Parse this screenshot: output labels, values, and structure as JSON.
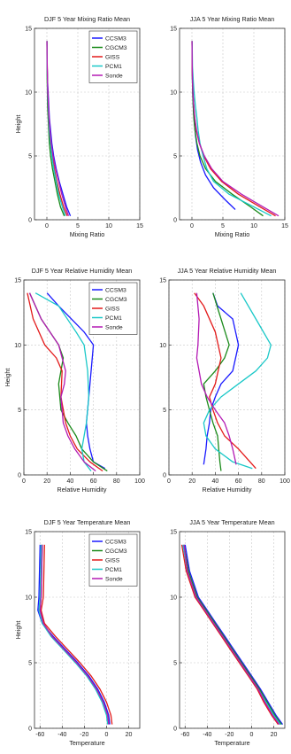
{
  "colors": {
    "CCSM3": "#1a1aff",
    "CGCM3": "#1a8a1a",
    "GISS": "#e31a1a",
    "PCM1": "#1ac8c8",
    "Sonde": "#b41ab4",
    "grid": "#c8c8c8",
    "axis": "#333333"
  },
  "chart_data": [
    {
      "type": "line",
      "title": "DJF 5 Year Mixing Ratio Mean",
      "xlabel": "Mixing Ratio",
      "ylabel": "Height",
      "xlim": [
        -2,
        15
      ],
      "ylim": [
        0,
        15
      ],
      "xticks": [
        0,
        5,
        10,
        15
      ],
      "yticks": [
        0,
        5,
        10,
        15
      ],
      "grid": true,
      "legend": "top-right",
      "series": [
        {
          "name": "CCSM3",
          "x": [
            3.8,
            3.2,
            2.6,
            2.0,
            1.5,
            1.1,
            0.8,
            0.6,
            0.4,
            0.3,
            0.2,
            0.1,
            0.05,
            0.03,
            0.02
          ],
          "y": [
            0.3,
            1,
            2,
            3,
            4,
            5,
            6,
            7,
            8,
            9,
            10,
            11,
            12,
            13,
            14
          ]
        },
        {
          "name": "CGCM3",
          "x": [
            2.8,
            2.2,
            1.7,
            1.3,
            0.9,
            0.6,
            0.4,
            0.3,
            0.2,
            0.1,
            0.08,
            0.05,
            0.03,
            0.02,
            0.01
          ],
          "y": [
            0.3,
            1,
            2,
            3,
            4,
            5,
            6,
            7,
            8,
            9,
            10,
            11,
            12,
            13,
            14
          ]
        },
        {
          "name": "GISS",
          "x": [
            3.3,
            2.7,
            2.1,
            1.6,
            1.2,
            0.9,
            0.6,
            0.4,
            0.3,
            0.2,
            0.15,
            0.1,
            0.06,
            0.03,
            0.02
          ],
          "y": [
            0.3,
            1,
            2,
            3,
            4,
            5,
            6,
            7,
            8,
            9,
            10,
            11,
            12,
            13,
            14
          ]
        },
        {
          "name": "PCM1",
          "x": [
            3.0,
            2.5,
            1.9,
            1.5,
            1.1,
            0.8,
            0.6,
            0.4,
            0.3,
            0.2,
            0.12,
            0.08,
            0.05,
            0.03,
            0.02
          ],
          "y": [
            0.3,
            1,
            2,
            3,
            4,
            5,
            6,
            7,
            8,
            9,
            10,
            11,
            12,
            13,
            14
          ]
        },
        {
          "name": "Sonde",
          "x": [
            3.5,
            3.0,
            2.4,
            1.9,
            1.4,
            1.0,
            0.7,
            0.5,
            0.35,
            0.25,
            0.15,
            0.1,
            0.06,
            0.03,
            0.02
          ],
          "y": [
            0.3,
            1,
            2,
            3,
            4,
            5,
            6,
            7,
            8,
            9,
            10,
            11,
            12,
            13,
            14
          ]
        }
      ]
    },
    {
      "type": "line",
      "title": "JJA 5 Year Mixing Ratio Mean",
      "xlabel": "Mixing Ratio",
      "ylabel": "",
      "xlim": [
        -2,
        15
      ],
      "ylim": [
        0,
        15
      ],
      "xticks": [
        0,
        5,
        10,
        15
      ],
      "yticks": [
        0,
        5,
        10,
        15
      ],
      "grid": true,
      "series": [
        {
          "name": "CCSM3",
          "x": [
            7.0,
            5.5,
            3.5,
            2.2,
            1.4,
            0.9,
            0.6,
            0.4,
            0.25,
            0.15,
            0.1,
            0.06,
            0.04,
            0.02
          ],
          "y": [
            0.8,
            1.5,
            2.5,
            3.5,
            4.5,
            5.5,
            6.5,
            7.5,
            8.5,
            9.5,
            10.5,
            11.5,
            12.5,
            14
          ]
        },
        {
          "name": "CGCM3",
          "x": [
            11.5,
            9.5,
            6.5,
            3.8,
            2.2,
            1.3,
            0.8,
            0.5,
            0.3,
            0.2,
            0.12,
            0.07,
            0.04,
            0.02
          ],
          "y": [
            0.3,
            1,
            2,
            3,
            4,
            5,
            6,
            7,
            8,
            9,
            10,
            11,
            12,
            14
          ]
        },
        {
          "name": "GISS",
          "x": [
            13.5,
            11.0,
            7.5,
            4.8,
            3.0,
            1.9,
            1.2,
            0.7,
            0.45,
            0.28,
            0.15,
            0.08,
            0.04,
            0.02
          ],
          "y": [
            0.3,
            1,
            2,
            3,
            4,
            5,
            6,
            7,
            8,
            9,
            10,
            11,
            12,
            14
          ]
        },
        {
          "name": "PCM1",
          "x": [
            12.8,
            10.0,
            6.0,
            3.5,
            2.4,
            1.8,
            1.3,
            1.0,
            0.8,
            0.55,
            0.35,
            0.2,
            0.08,
            0.03
          ],
          "y": [
            0.3,
            1,
            2,
            3,
            4,
            5,
            6,
            7,
            8,
            9,
            10,
            11,
            12,
            14
          ]
        },
        {
          "name": "Sonde",
          "x": [
            14.0,
            11.5,
            8.0,
            5.0,
            3.2,
            2.0,
            1.2,
            0.75,
            0.45,
            0.28,
            0.15,
            0.08,
            0.04,
            0.02
          ],
          "y": [
            0.3,
            1,
            2,
            3,
            4,
            5,
            6,
            7,
            8,
            9,
            10,
            11,
            12,
            14
          ]
        }
      ]
    },
    {
      "type": "line",
      "title": "DJF 5 Year Relative Humidity Mean",
      "xlabel": "Relative Humidity",
      "ylabel": "Height",
      "xlim": [
        0,
        100
      ],
      "ylim": [
        0,
        15
      ],
      "xticks": [
        0,
        20,
        40,
        60,
        80,
        100
      ],
      "yticks": [
        0,
        5,
        10,
        15
      ],
      "grid": true,
      "legend": "top-right",
      "series": [
        {
          "name": "CCSM3",
          "x": [
            70,
            60,
            57,
            55,
            54,
            56,
            58,
            60,
            52,
            30,
            20
          ],
          "y": [
            0.5,
            1,
            2,
            3,
            4,
            6,
            8,
            10,
            11,
            13,
            14
          ]
        },
        {
          "name": "CGCM3",
          "x": [
            72,
            60,
            50,
            45,
            38,
            32,
            30,
            34,
            30,
            15,
            5
          ],
          "y": [
            0.3,
            1,
            2,
            3,
            4,
            5,
            7,
            9,
            10,
            12,
            14
          ]
        },
        {
          "name": "GISS",
          "x": [
            68,
            57,
            46,
            40,
            36,
            32,
            33,
            28,
            18,
            8,
            3
          ],
          "y": [
            0.3,
            1,
            2,
            3,
            4,
            6,
            8,
            9,
            10,
            12,
            14
          ]
        },
        {
          "name": "PCM1",
          "x": [
            58,
            52,
            50,
            52,
            54,
            56,
            55,
            52,
            45,
            30,
            10
          ],
          "y": [
            0.3,
            1,
            2,
            3,
            4,
            6,
            8,
            10,
            11,
            13,
            14
          ]
        },
        {
          "name": "Sonde",
          "x": [
            62,
            52,
            44,
            38,
            34,
            32,
            35,
            36,
            30,
            15,
            5
          ],
          "y": [
            0.3,
            1,
            2,
            3,
            4,
            6,
            7,
            8,
            10,
            12,
            14
          ]
        }
      ]
    },
    {
      "type": "line",
      "title": "JJA 5 Year Relative Humidity Mean",
      "xlabel": "Relative Humidity",
      "ylabel": "",
      "xlim": [
        0,
        100
      ],
      "ylim": [
        0,
        15
      ],
      "xticks": [
        0,
        20,
        40,
        60,
        80,
        100
      ],
      "yticks": [
        0,
        5,
        10,
        15
      ],
      "grid": true,
      "series": [
        {
          "name": "CCSM3",
          "x": [
            30,
            32,
            33,
            35,
            36,
            40,
            45,
            55,
            60,
            55,
            42,
            38
          ],
          "y": [
            0.8,
            2,
            3,
            4,
            5,
            6,
            7,
            8,
            10,
            12,
            13,
            14
          ]
        },
        {
          "name": "CGCM3",
          "x": [
            45,
            44,
            42,
            38,
            35,
            32,
            30,
            40,
            48,
            52,
            45,
            38
          ],
          "y": [
            0.3,
            1,
            3,
            4,
            5,
            6,
            7,
            8,
            9,
            10,
            12,
            14
          ]
        },
        {
          "name": "GISS",
          "x": [
            75,
            70,
            60,
            48,
            42,
            38,
            35,
            40,
            45,
            40,
            30,
            22
          ],
          "y": [
            0.5,
            1,
            2,
            3,
            4,
            5,
            6,
            7,
            9,
            11,
            13,
            14
          ]
        },
        {
          "name": "PCM1",
          "x": [
            72,
            55,
            40,
            32,
            30,
            35,
            45,
            60,
            75,
            85,
            88,
            75,
            62
          ],
          "y": [
            0.5,
            1,
            2,
            3,
            4,
            5,
            6,
            7,
            8,
            9,
            10,
            12,
            14
          ]
        },
        {
          "name": "Sonde",
          "x": [
            58,
            55,
            52,
            48,
            40,
            33,
            28,
            26,
            24,
            25,
            26,
            24
          ],
          "y": [
            0.8,
            2,
            3,
            4,
            5,
            6,
            7,
            8,
            9,
            10,
            12,
            14
          ]
        }
      ]
    },
    {
      "type": "line",
      "title": "DJF 5 Year Temperature Mean",
      "xlabel": "Temperature",
      "ylabel": "Height",
      "xlim": [
        -65,
        30
      ],
      "ylim": [
        0,
        15
      ],
      "xticks": [
        -60,
        -40,
        -20,
        0,
        20
      ],
      "yticks": [
        0,
        5,
        10,
        15
      ],
      "grid": true,
      "legend": "top-right",
      "series": [
        {
          "name": "CCSM3",
          "x": [
            3,
            2,
            -2,
            -8,
            -16,
            -26,
            -37,
            -48,
            -58,
            -62,
            -61,
            -60
          ],
          "y": [
            0.3,
            1,
            2,
            3,
            4,
            5,
            6,
            7,
            8,
            9,
            10,
            14
          ]
        },
        {
          "name": "CGCM3",
          "x": [
            2,
            1,
            -3,
            -9,
            -17,
            -27,
            -38,
            -49,
            -57,
            -60,
            -59,
            -58
          ],
          "y": [
            0.3,
            1,
            2,
            3,
            4,
            5,
            6,
            7,
            8,
            9,
            10,
            14
          ]
        },
        {
          "name": "GISS",
          "x": [
            5,
            4,
            0,
            -6,
            -14,
            -24,
            -35,
            -46,
            -56,
            -59,
            -57,
            -56
          ],
          "y": [
            0.3,
            1,
            2,
            3,
            4,
            5,
            6,
            7,
            8,
            9,
            10,
            14
          ]
        },
        {
          "name": "PCM1",
          "x": [
            1,
            0,
            -4,
            -10,
            -18,
            -28,
            -39,
            -50,
            -58,
            -61,
            -60,
            -59
          ],
          "y": [
            0.3,
            1,
            2,
            3,
            4,
            5,
            6,
            7,
            8,
            9,
            10,
            14
          ]
        },
        {
          "name": "Sonde",
          "x": [
            2,
            1,
            -3,
            -9,
            -17,
            -27,
            -38,
            -49,
            -57,
            -60,
            -59,
            -58
          ],
          "y": [
            0.3,
            1,
            2,
            3,
            4,
            5,
            6,
            7,
            8,
            9,
            10,
            14
          ]
        }
      ]
    },
    {
      "type": "line",
      "title": "JJA 5 Year Temperature Mean",
      "xlabel": "Temperature",
      "ylabel": "",
      "xlim": [
        -65,
        30
      ],
      "ylim": [
        0,
        15
      ],
      "xticks": [
        -60,
        -40,
        -20,
        0,
        20
      ],
      "yticks": [
        0,
        5,
        10,
        15
      ],
      "grid": true,
      "series": [
        {
          "name": "CCSM3",
          "x": [
            28,
            22,
            15,
            8,
            0,
            -8,
            -16,
            -24,
            -32,
            -40,
            -48,
            -56,
            -60
          ],
          "y": [
            0.3,
            1,
            2,
            3,
            4,
            5,
            6,
            7,
            8,
            9,
            10,
            12,
            14
          ]
        },
        {
          "name": "CGCM3",
          "x": [
            27,
            21,
            14,
            7,
            -1,
            -9,
            -17,
            -25,
            -33,
            -41,
            -49,
            -57,
            -61
          ],
          "y": [
            0.3,
            1,
            2,
            3,
            4,
            5,
            6,
            7,
            8,
            9,
            10,
            12,
            14
          ]
        },
        {
          "name": "GISS",
          "x": [
            24,
            18,
            11,
            5,
            -3,
            -11,
            -19,
            -27,
            -35,
            -43,
            -51,
            -59,
            -63
          ],
          "y": [
            0.3,
            1,
            2,
            3,
            4,
            5,
            6,
            7,
            8,
            9,
            10,
            12,
            14
          ]
        },
        {
          "name": "PCM1",
          "x": [
            26,
            20,
            13,
            6,
            -2,
            -10,
            -18,
            -26,
            -34,
            -42,
            -50,
            -58,
            -62
          ],
          "y": [
            0.3,
            1,
            2,
            3,
            4,
            5,
            6,
            7,
            8,
            9,
            10,
            12,
            14
          ]
        },
        {
          "name": "Sonde",
          "x": [
            25,
            19,
            12,
            6,
            -2,
            -10,
            -18,
            -26,
            -34,
            -42,
            -50,
            -58,
            -61
          ],
          "y": [
            0.3,
            1,
            2,
            3,
            4,
            5,
            6,
            7,
            8,
            9,
            10,
            12,
            14
          ]
        }
      ]
    }
  ]
}
